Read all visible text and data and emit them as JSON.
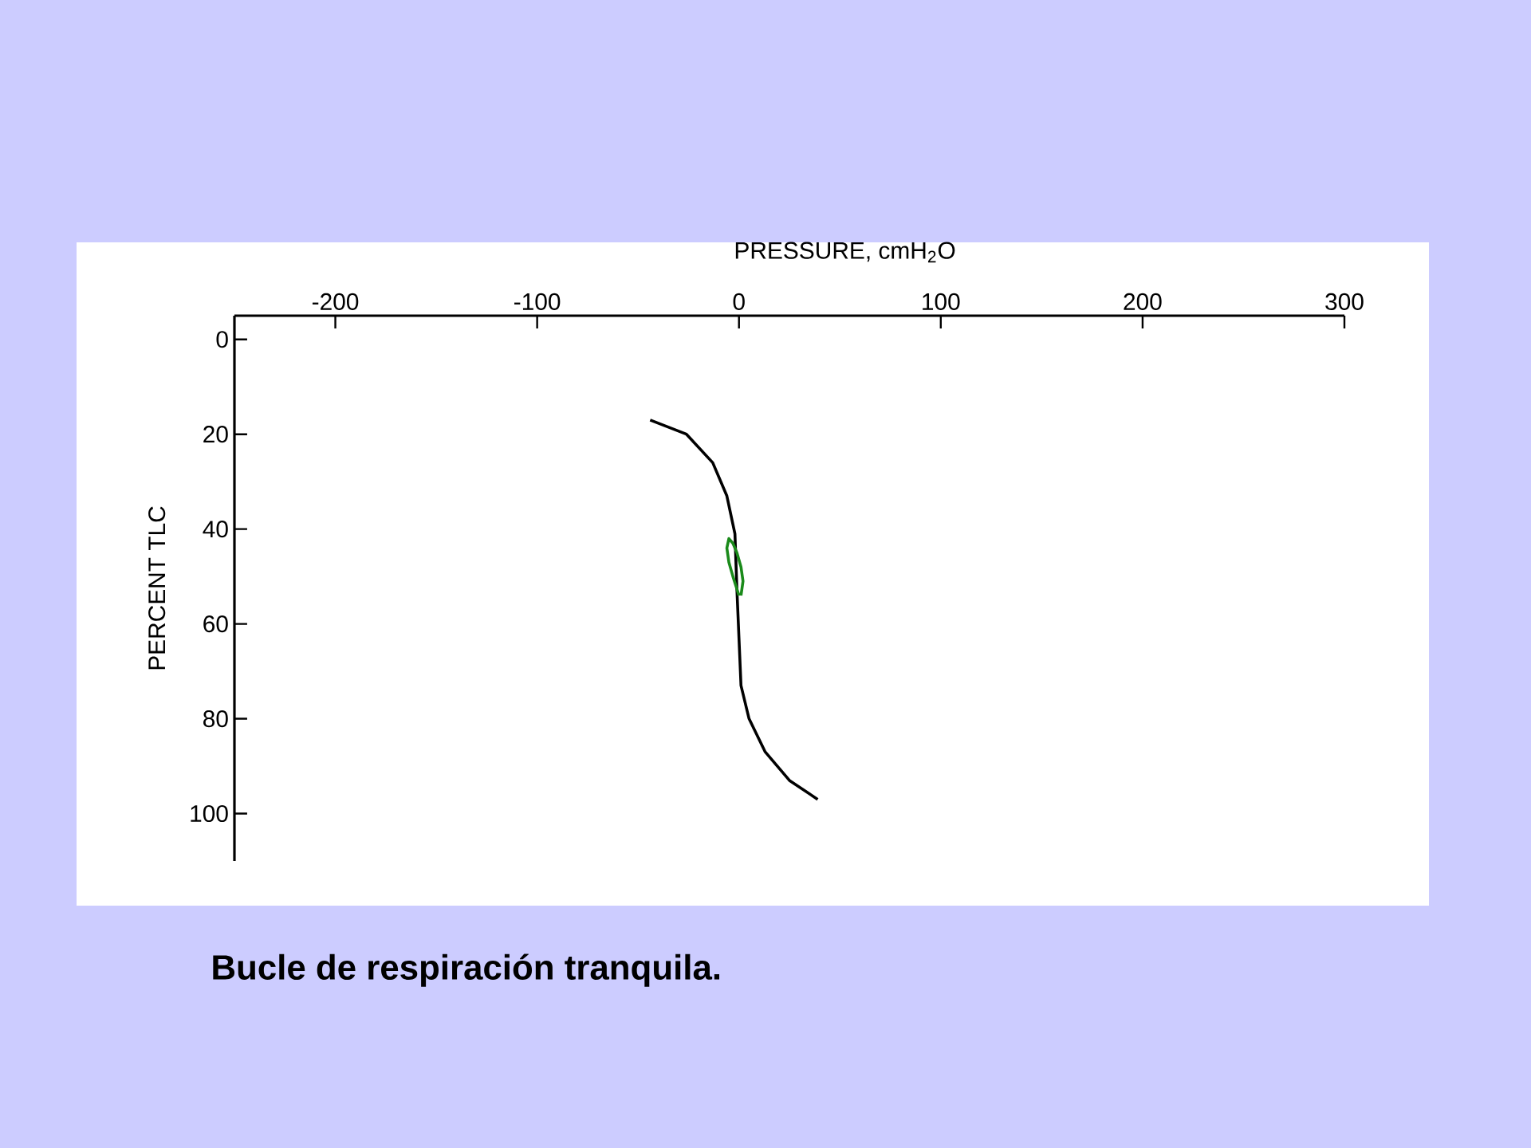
{
  "chart_data": {
    "type": "line",
    "xlabel": "PRESSURE, cmH$_{2}$O",
    "ylabel": "PERCENT TLC",
    "annotations": [
      "Bucle de respiración tranquila."
    ],
    "xlim": [
      -250,
      300
    ],
    "ylim": [
      110,
      -5
    ],
    "xticks": [
      -200,
      -100,
      0,
      100,
      200,
      300
    ],
    "yticks": [
      0,
      20,
      40,
      60,
      80,
      100
    ],
    "series": [
      {
        "color": "#000000",
        "x": [
          -44,
          -26,
          -13,
          -6,
          -2,
          -1,
          0,
          1,
          5,
          13,
          25,
          39
        ],
        "values": [
          17,
          20,
          26,
          33,
          41,
          53,
          63,
          73,
          80,
          87,
          93,
          97
        ]
      },
      {
        "color": "#1a8a1a",
        "x": [
          0,
          -3,
          -5,
          -6,
          -5,
          -3,
          -1,
          1,
          2,
          1
        ],
        "values": [
          54,
          50,
          47,
          44,
          42,
          43,
          45,
          48,
          51,
          54
        ]
      }
    ]
  }
}
